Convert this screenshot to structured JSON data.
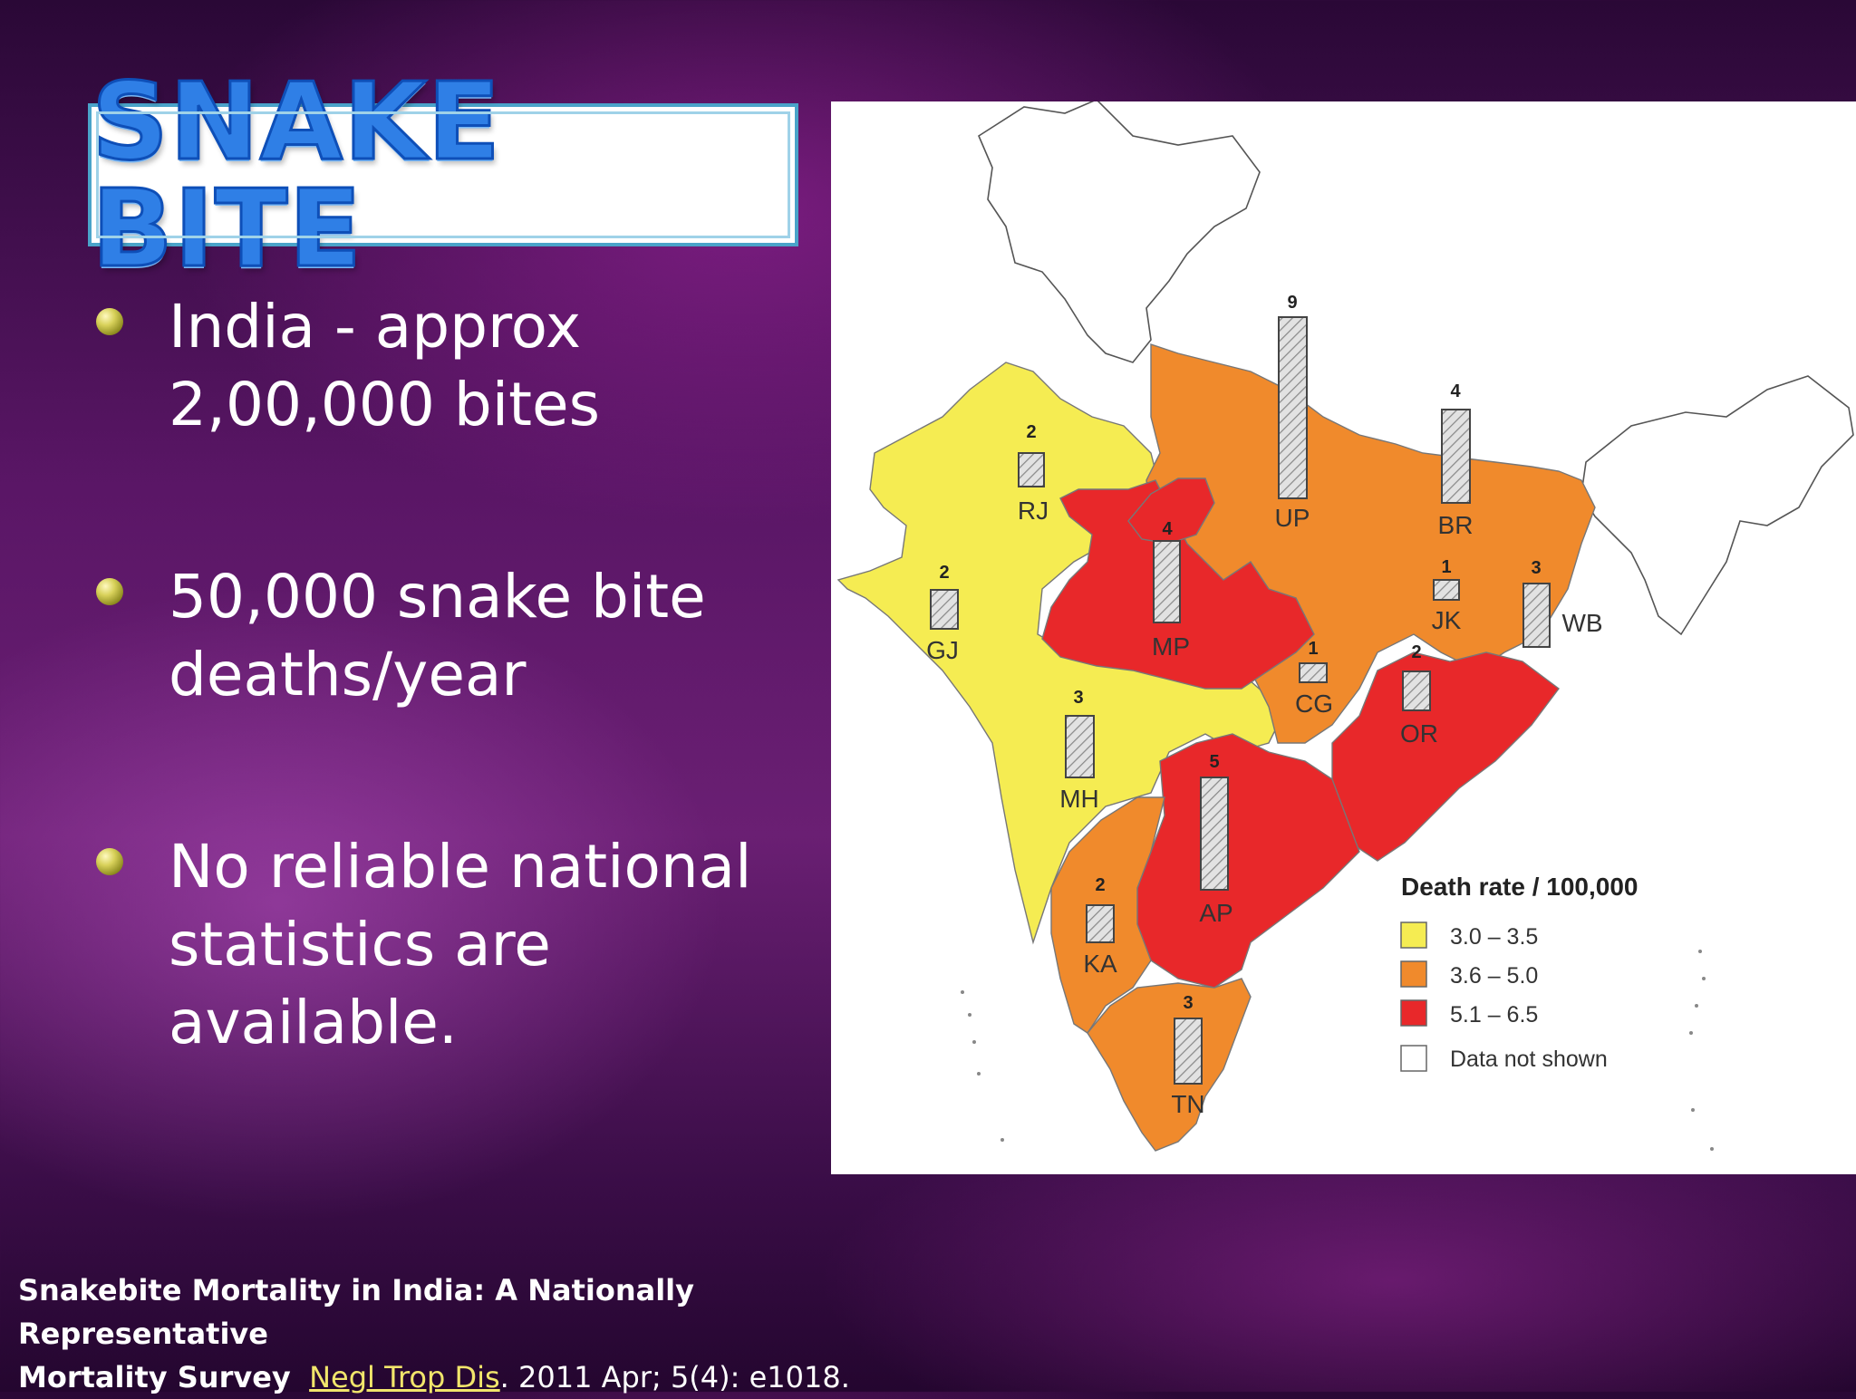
{
  "slide": {
    "title": "SNAKE BITE",
    "bullets": [
      {
        "line1": "India - approx",
        "line2": "2,00,000 bites"
      },
      {
        "line1": "50,000 snake bite",
        "line2": "deaths/year"
      },
      {
        "line1": "No reliable national",
        "line2": "statistics are",
        "line3": "available."
      }
    ],
    "citation": {
      "line1": "Snakebite Mortality in India: A Nationally Representative",
      "title_end": "Mortality Survey",
      "journal": "Negl Trop Dis",
      "rest": ". 2011 Apr; 5(4): e1018."
    }
  },
  "map": {
    "legend": {
      "title": "Death rate / 100,000",
      "items": [
        {
          "label": "3.0 – 3.5",
          "color": "#f5ec52"
        },
        {
          "label": "3.6 – 5.0",
          "color": "#f08a2c"
        },
        {
          "label": "5.1 – 6.5",
          "color": "#e8282a"
        },
        {
          "label": "Data not shown",
          "color": "#ffffff"
        }
      ]
    },
    "states": [
      {
        "code": "RJ",
        "value": "2",
        "rate_class": "3.0 – 3.5"
      },
      {
        "code": "GJ",
        "value": "2",
        "rate_class": "3.0 – 3.5"
      },
      {
        "code": "MP",
        "value": "4",
        "rate_class": "5.1 – 6.5"
      },
      {
        "code": "UP",
        "value": "9",
        "rate_class": "3.6 – 5.0"
      },
      {
        "code": "BR",
        "value": "4",
        "rate_class": "3.6 – 5.0"
      },
      {
        "code": "JK",
        "value": "1",
        "rate_class": "3.6 – 5.0"
      },
      {
        "code": "WB",
        "value": "3",
        "rate_class": "3.6 – 5.0"
      },
      {
        "code": "CG",
        "value": "1",
        "rate_class": "3.6 – 5.0"
      },
      {
        "code": "OR",
        "value": "2",
        "rate_class": "5.1 – 6.5"
      },
      {
        "code": "MH",
        "value": "3",
        "rate_class": "3.0 – 3.5"
      },
      {
        "code": "AP",
        "value": "5",
        "rate_class": "5.1 – 6.5"
      },
      {
        "code": "KA",
        "value": "2",
        "rate_class": "3.6 – 5.0"
      },
      {
        "code": "TN",
        "value": "3",
        "rate_class": "3.6 – 5.0"
      }
    ]
  }
}
